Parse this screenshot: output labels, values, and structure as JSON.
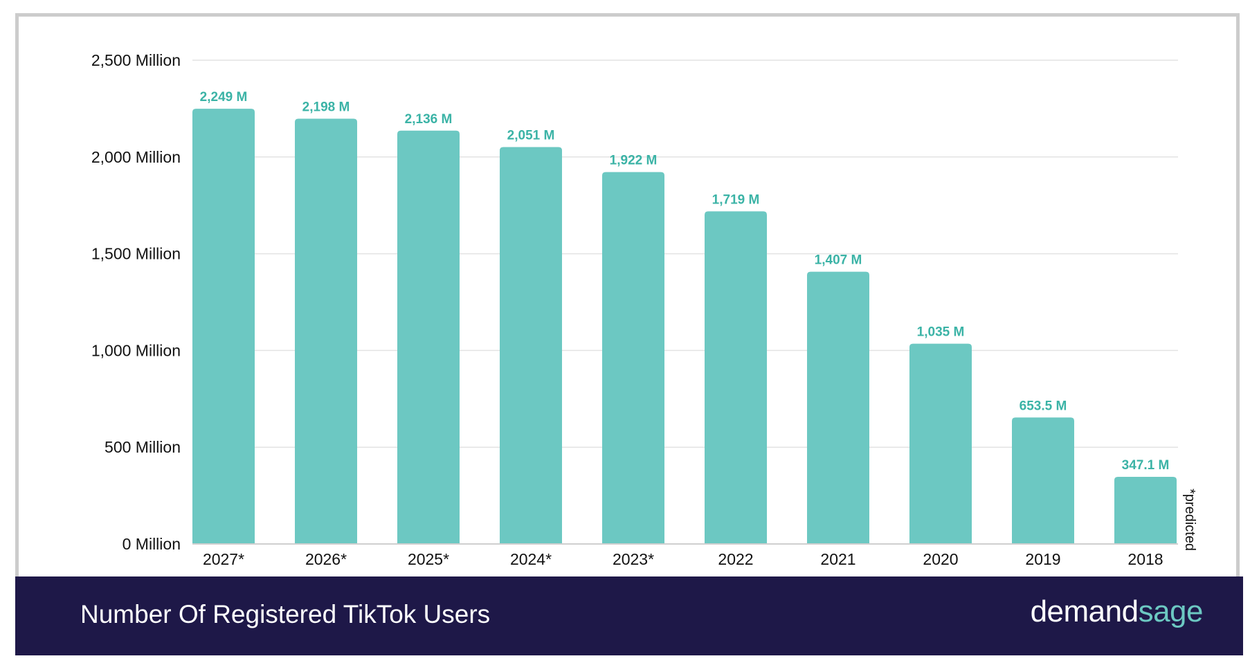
{
  "chart_data": {
    "type": "bar",
    "categories": [
      "2027*",
      "2026*",
      "2025*",
      "2024*",
      "2023*",
      "2022",
      "2021",
      "2020",
      "2019",
      "2018"
    ],
    "values": [
      2249,
      2198,
      2136,
      2051,
      1922,
      1719,
      1407,
      1035,
      653.5,
      347.1
    ],
    "data_labels": [
      "2,249 M",
      "2,198 M",
      "2,136 M",
      "2,051 M",
      "1,922 M",
      "1,719 M",
      "1,407 M",
      "1,035 M",
      "653.5 M",
      "347.1 M"
    ],
    "yticks": [
      0,
      500,
      1000,
      1500,
      2000,
      2500
    ],
    "ytick_labels": [
      "0 Million",
      "500 Million",
      "1,000 Million",
      "1,500 Million",
      "2,000 Million",
      "2,500 Million"
    ],
    "ylim": [
      0,
      2500
    ],
    "grid": true,
    "note": "*predicted",
    "title": "Number Of Registered TikTok Users",
    "colors": {
      "bar": "#6cc8c2",
      "label": "#3bb3a6",
      "footer": "#1e1848"
    }
  },
  "footer": {
    "title": "Number Of Registered TikTok Users",
    "logo_part1": "demand",
    "logo_part2": "sage"
  }
}
